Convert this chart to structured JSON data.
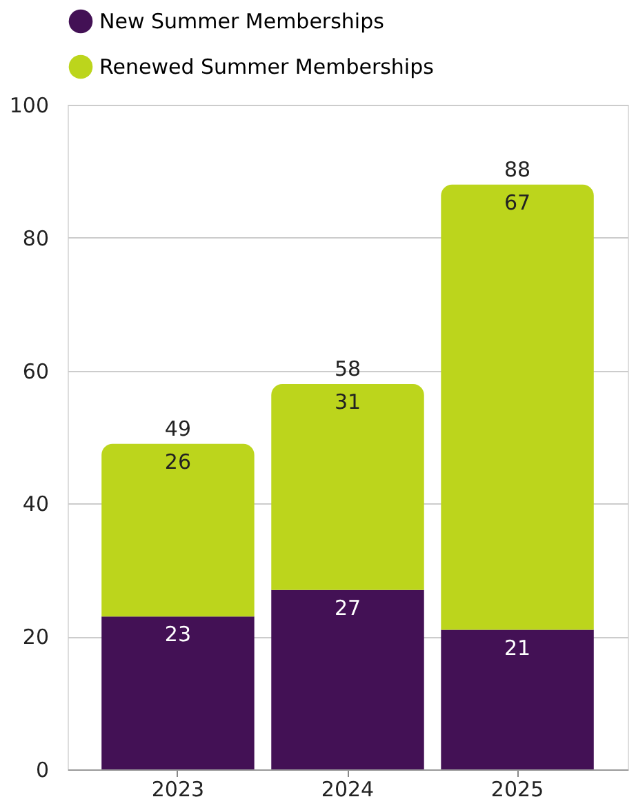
{
  "chart_data": {
    "type": "bar",
    "stacked": true,
    "categories": [
      "2023",
      "2024",
      "2025"
    ],
    "series": [
      {
        "name": "New Summer Memberships",
        "color": "#431155",
        "values": [
          23,
          27,
          21
        ]
      },
      {
        "name": "Renewed Summer Memberships",
        "color": "#bcd51c",
        "values": [
          26,
          31,
          67
        ]
      }
    ],
    "ylim": [
      0,
      100
    ],
    "yticks": [
      0,
      20,
      40,
      60,
      80,
      100
    ],
    "grid": "y",
    "legend": "top",
    "data_labels": true,
    "totals": [
      "49",
      "58",
      "88"
    ]
  }
}
